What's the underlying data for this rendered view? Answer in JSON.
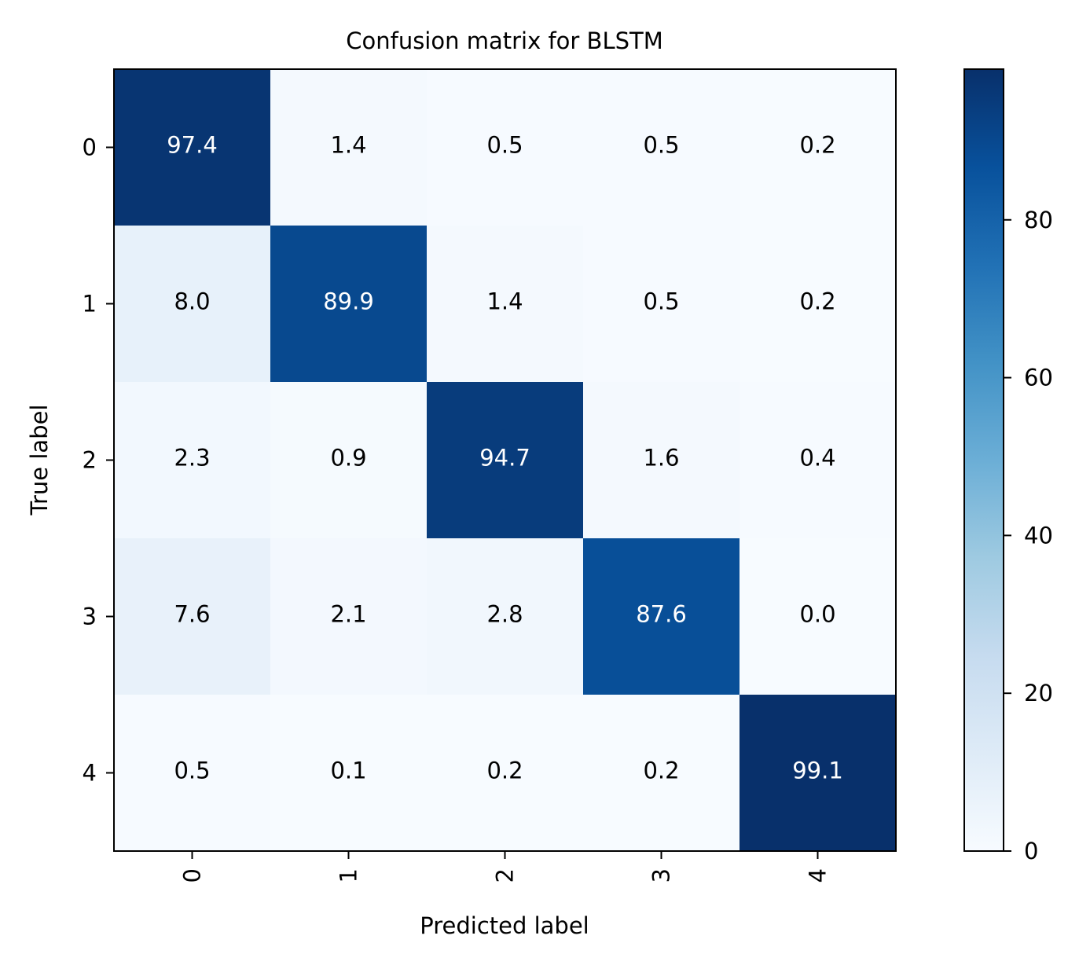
{
  "chart_data": {
    "type": "heatmap",
    "title": "Confusion matrix for BLSTM",
    "xlabel": "Predicted label",
    "ylabel": "True label",
    "x_categories": [
      "0",
      "1",
      "2",
      "3",
      "4"
    ],
    "y_categories": [
      "0",
      "1",
      "2",
      "3",
      "4"
    ],
    "values": [
      [
        97.4,
        1.4,
        0.5,
        0.5,
        0.2
      ],
      [
        8.0,
        89.9,
        1.4,
        0.5,
        0.2
      ],
      [
        2.3,
        0.9,
        94.7,
        1.6,
        0.4
      ],
      [
        7.6,
        2.1,
        2.8,
        87.6,
        0.0
      ],
      [
        0.5,
        0.1,
        0.2,
        0.2,
        99.1
      ]
    ],
    "value_labels": [
      [
        "97.4",
        "1.4",
        "0.5",
        "0.5",
        "0.2"
      ],
      [
        "8.0",
        "89.9",
        "1.4",
        "0.5",
        "0.2"
      ],
      [
        "2.3",
        "0.9",
        "94.7",
        "1.6",
        "0.4"
      ],
      [
        "7.6",
        "2.1",
        "2.8",
        "87.6",
        "0.0"
      ],
      [
        "0.5",
        "0.1",
        "0.2",
        "0.2",
        "99.1"
      ]
    ],
    "colormap": "Blues",
    "colorbar": {
      "range": [
        0,
        99.1
      ],
      "ticks": [
        0,
        20,
        40,
        60,
        80
      ],
      "tick_labels": [
        "0",
        "20",
        "40",
        "60",
        "80"
      ]
    }
  }
}
